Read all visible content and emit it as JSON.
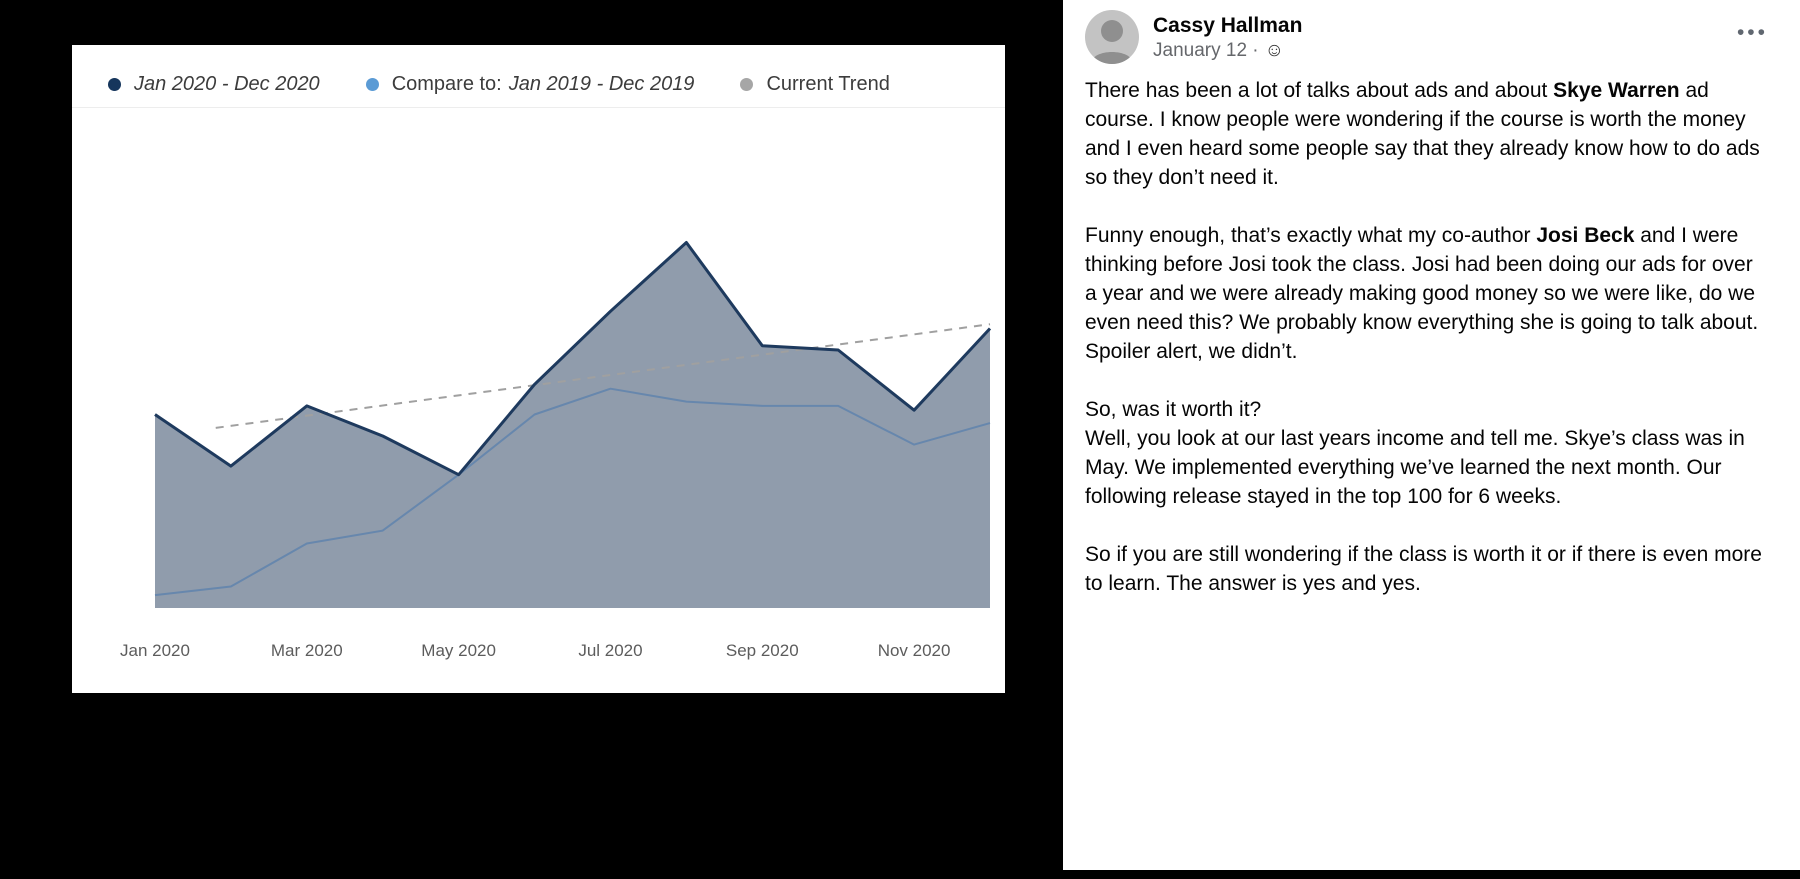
{
  "chart": {
    "legend": {
      "item1_label": "Jan 2020 - Dec 2020",
      "item2_prefix": "Compare to:",
      "item2_label": "Jan 2019 - Dec 2019",
      "item3_label": "Current Trend"
    }
  },
  "chart_data": {
    "type": "area",
    "title": "",
    "xlabel": "",
    "ylabel": "",
    "x": [
      "Jan 2020",
      "Feb 2020",
      "Mar 2020",
      "Apr 2020",
      "May 2020",
      "Jun 2020",
      "Jul 2020",
      "Aug 2020",
      "Sep 2020",
      "Oct 2020",
      "Nov 2020",
      "Dec 2020"
    ],
    "ylim": [
      0,
      100
    ],
    "y_axis_visible": false,
    "grid": false,
    "legend_position": "top",
    "tick_months": [
      0,
      2,
      4,
      6,
      8,
      10
    ],
    "tick_labels": [
      "Jan 2020",
      "Mar 2020",
      "May 2020",
      "Jul 2020",
      "Sep 2020",
      "Nov 2020"
    ],
    "series": [
      {
        "name": "Jan 2020 - Dec 2020",
        "values": [
          45,
          33,
          47,
          40,
          31,
          52,
          69,
          85,
          61,
          60,
          46,
          65
        ],
        "color": "#1e3a5e",
        "fill": "#8c99a9",
        "dot_color": "#16365c"
      },
      {
        "name": "Compare to: Jan 2019 - Dec 2019",
        "values": [
          3,
          5,
          15,
          18,
          31,
          45,
          51,
          48,
          47,
          47,
          38,
          43
        ],
        "color": "#6787ad",
        "dot_color": "#5b9bd5"
      },
      {
        "name": "Current Trend",
        "style": "dashed",
        "trend_start": 40,
        "trend_end": 66,
        "color": "#a0a0a0",
        "dot_color": "#a6a6a6"
      }
    ]
  },
  "post": {
    "author": "Cassy Hallman",
    "date": "January 12 ·",
    "icons": {
      "options_glyph": "•••",
      "emoji_glyph": "☺"
    },
    "p1": {
      "pre": "There has been a lot of talks about ads and about ",
      "bold": "Skye Warren",
      "rest": " ad course. I know people were wondering if the course is worth the money and I even heard some people say that they already know how to do ads so they don’t need it."
    },
    "p2": {
      "pre": "Funny enough, that’s exactly what my co-author ",
      "bold": "Josi Beck",
      "rest": " and I were thinking before Josi took the class. Josi had been doing our ads for over a year and we were already making good money so we were like, do we even need this? We probably know everything she is going to talk about. Spoiler alert, we didn’t."
    },
    "p3": {
      "line1": "So, was it worth it?",
      "line2": "Well, you look at our last years income and tell me. Skye’s class was in May. We implemented everything we’ve learned the next month. Our following release stayed in the top 100 for 6 weeks."
    },
    "p4": "So if you are still wondering if the class is worth it or if there is even more to learn. The answer is yes and yes."
  }
}
